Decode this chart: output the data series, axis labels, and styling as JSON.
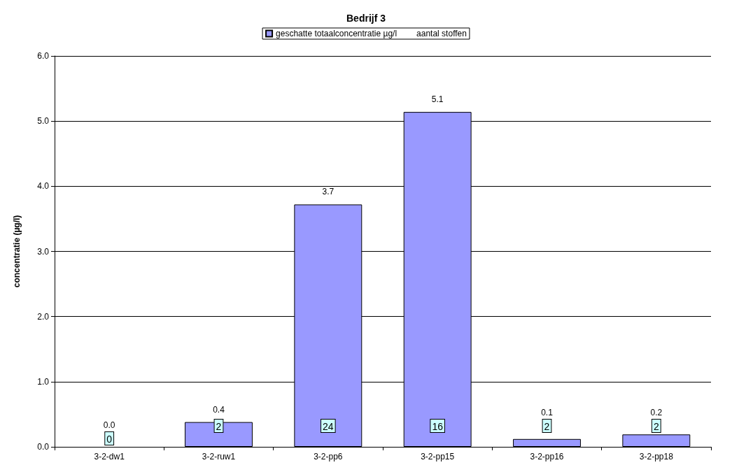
{
  "chart_data": {
    "type": "bar",
    "title": "Bedrijf 3",
    "ylabel": "concentratie (µg/l)",
    "categories": [
      "3-2-dw1",
      "3-2-ruw1",
      "3-2-pp6",
      "3-2-pp15",
      "3-2-pp16",
      "3-2-pp18"
    ],
    "series": [
      {
        "name": "geschatte totaalconcentratie µg/l",
        "color": "#9999ff",
        "values": [
          0.0,
          0.38,
          3.72,
          5.14,
          0.12,
          0.19
        ],
        "value_labels": [
          "0.0",
          "0.4",
          "3.7",
          "5.1",
          "0.1",
          "0.2"
        ]
      },
      {
        "name": "aantal stoffen",
        "type": "scatter",
        "values": [
          null,
          null,
          null,
          null,
          null,
          null
        ]
      }
    ],
    "annotations": [
      "0",
      "2",
      "24",
      "16",
      "2",
      "2"
    ],
    "ylim": [
      0,
      6
    ],
    "yticks": [
      {
        "value": 0,
        "label": "0.0"
      },
      {
        "value": 1,
        "label": "1.0"
      },
      {
        "value": 2,
        "label": "2.0"
      },
      {
        "value": 3,
        "label": "3.0"
      },
      {
        "value": 4,
        "label": "4.0"
      },
      {
        "value": 5,
        "label": "5.0"
      },
      {
        "value": 6,
        "label": "6.0"
      }
    ],
    "grid": "y",
    "legend": "top"
  }
}
